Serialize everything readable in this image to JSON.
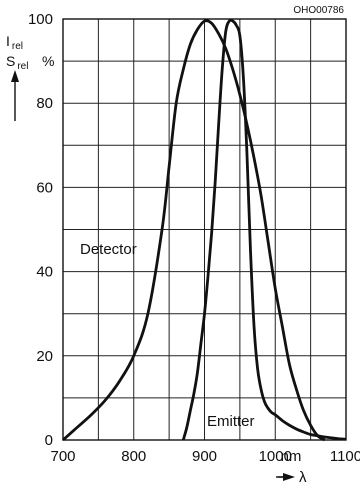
{
  "figure_code": "OHO00786",
  "chart_data": {
    "type": "line",
    "xlim": [
      700,
      1100
    ],
    "ylim": [
      0,
      100
    ],
    "x_ticks": [
      700,
      800,
      900,
      1000,
      1100
    ],
    "y_ticks": [
      0,
      20,
      40,
      60,
      80,
      100
    ],
    "x_unit": "nm",
    "xlabel": "λ",
    "ylabel": {
      "line1_main": "I",
      "line1_sub": "rel",
      "line2_main": "S",
      "line2_sub": "rel",
      "unit": "%"
    },
    "grid": true,
    "series": [
      {
        "name": "Detector",
        "x": [
          700,
          720,
          740,
          760,
          780,
          800,
          820,
          840,
          850,
          860,
          870,
          880,
          890,
          900,
          910,
          920,
          930,
          940,
          950,
          960,
          970,
          980,
          990,
          1000,
          1010,
          1020,
          1030,
          1040,
          1050,
          1060,
          1070
        ],
        "y": [
          0,
          3,
          6,
          9.5,
          14,
          20,
          30,
          50,
          65,
          80,
          88,
          94,
          97.5,
          99.5,
          99,
          96.5,
          93,
          88,
          82,
          75,
          67,
          58,
          47,
          36,
          27,
          18,
          12,
          7,
          3.5,
          1,
          0
        ]
      },
      {
        "name": "Emitter",
        "x": [
          870,
          875,
          880,
          885,
          890,
          895,
          900,
          905,
          910,
          915,
          920,
          925,
          930,
          935,
          940,
          945,
          950,
          955,
          960,
          965,
          970,
          975,
          980,
          985,
          990,
          995,
          1000,
          1010,
          1020,
          1030,
          1040,
          1050,
          1060,
          1070,
          1080,
          1090,
          1100
        ],
        "y": [
          0,
          3,
          7,
          11,
          16,
          23,
          30,
          39,
          49,
          61,
          75,
          88,
          97,
          99.5,
          99.5,
          98.5,
          96,
          86,
          68,
          45,
          27,
          17,
          12,
          9,
          7.5,
          6.5,
          6,
          4.6,
          3.5,
          2.6,
          1.9,
          1.3,
          1,
          0.7,
          0.5,
          0.3,
          0.2
        ]
      }
    ],
    "annotations": [
      "Detector",
      "Emitter"
    ]
  }
}
